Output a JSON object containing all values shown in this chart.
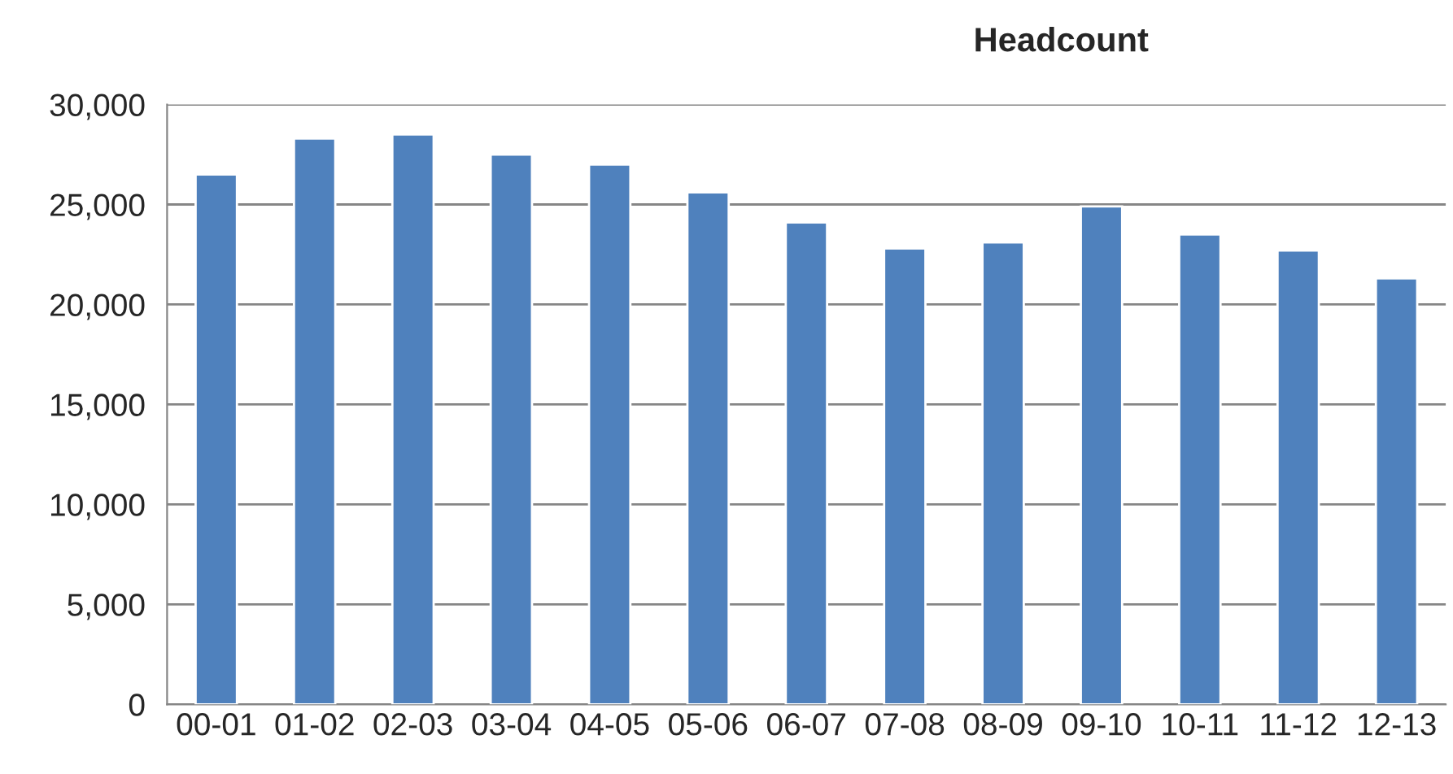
{
  "chart_data": {
    "type": "bar",
    "title": "Headcount",
    "categories": [
      "00-01",
      "01-02",
      "02-03",
      "03-04",
      "04-05",
      "05-06",
      "06-07",
      "07-08",
      "08-09",
      "09-10",
      "10-11",
      "11-12",
      "12-13"
    ],
    "values": [
      26500,
      28300,
      28500,
      27500,
      27000,
      25600,
      24100,
      22800,
      23100,
      24900,
      23500,
      22700,
      21300
    ],
    "color": "#4f81bd",
    "ylim": [
      0,
      30000
    ],
    "yticks": [
      {
        "value": 0,
        "label": "0"
      },
      {
        "value": 5000,
        "label": "5,000"
      },
      {
        "value": 10000,
        "label": "10,000"
      },
      {
        "value": 15000,
        "label": "15,000"
      },
      {
        "value": 20000,
        "label": "20,000"
      },
      {
        "value": 25000,
        "label": "25,000"
      },
      {
        "value": 30000,
        "label": "30,000"
      }
    ],
    "grid": "y",
    "legend": false
  }
}
